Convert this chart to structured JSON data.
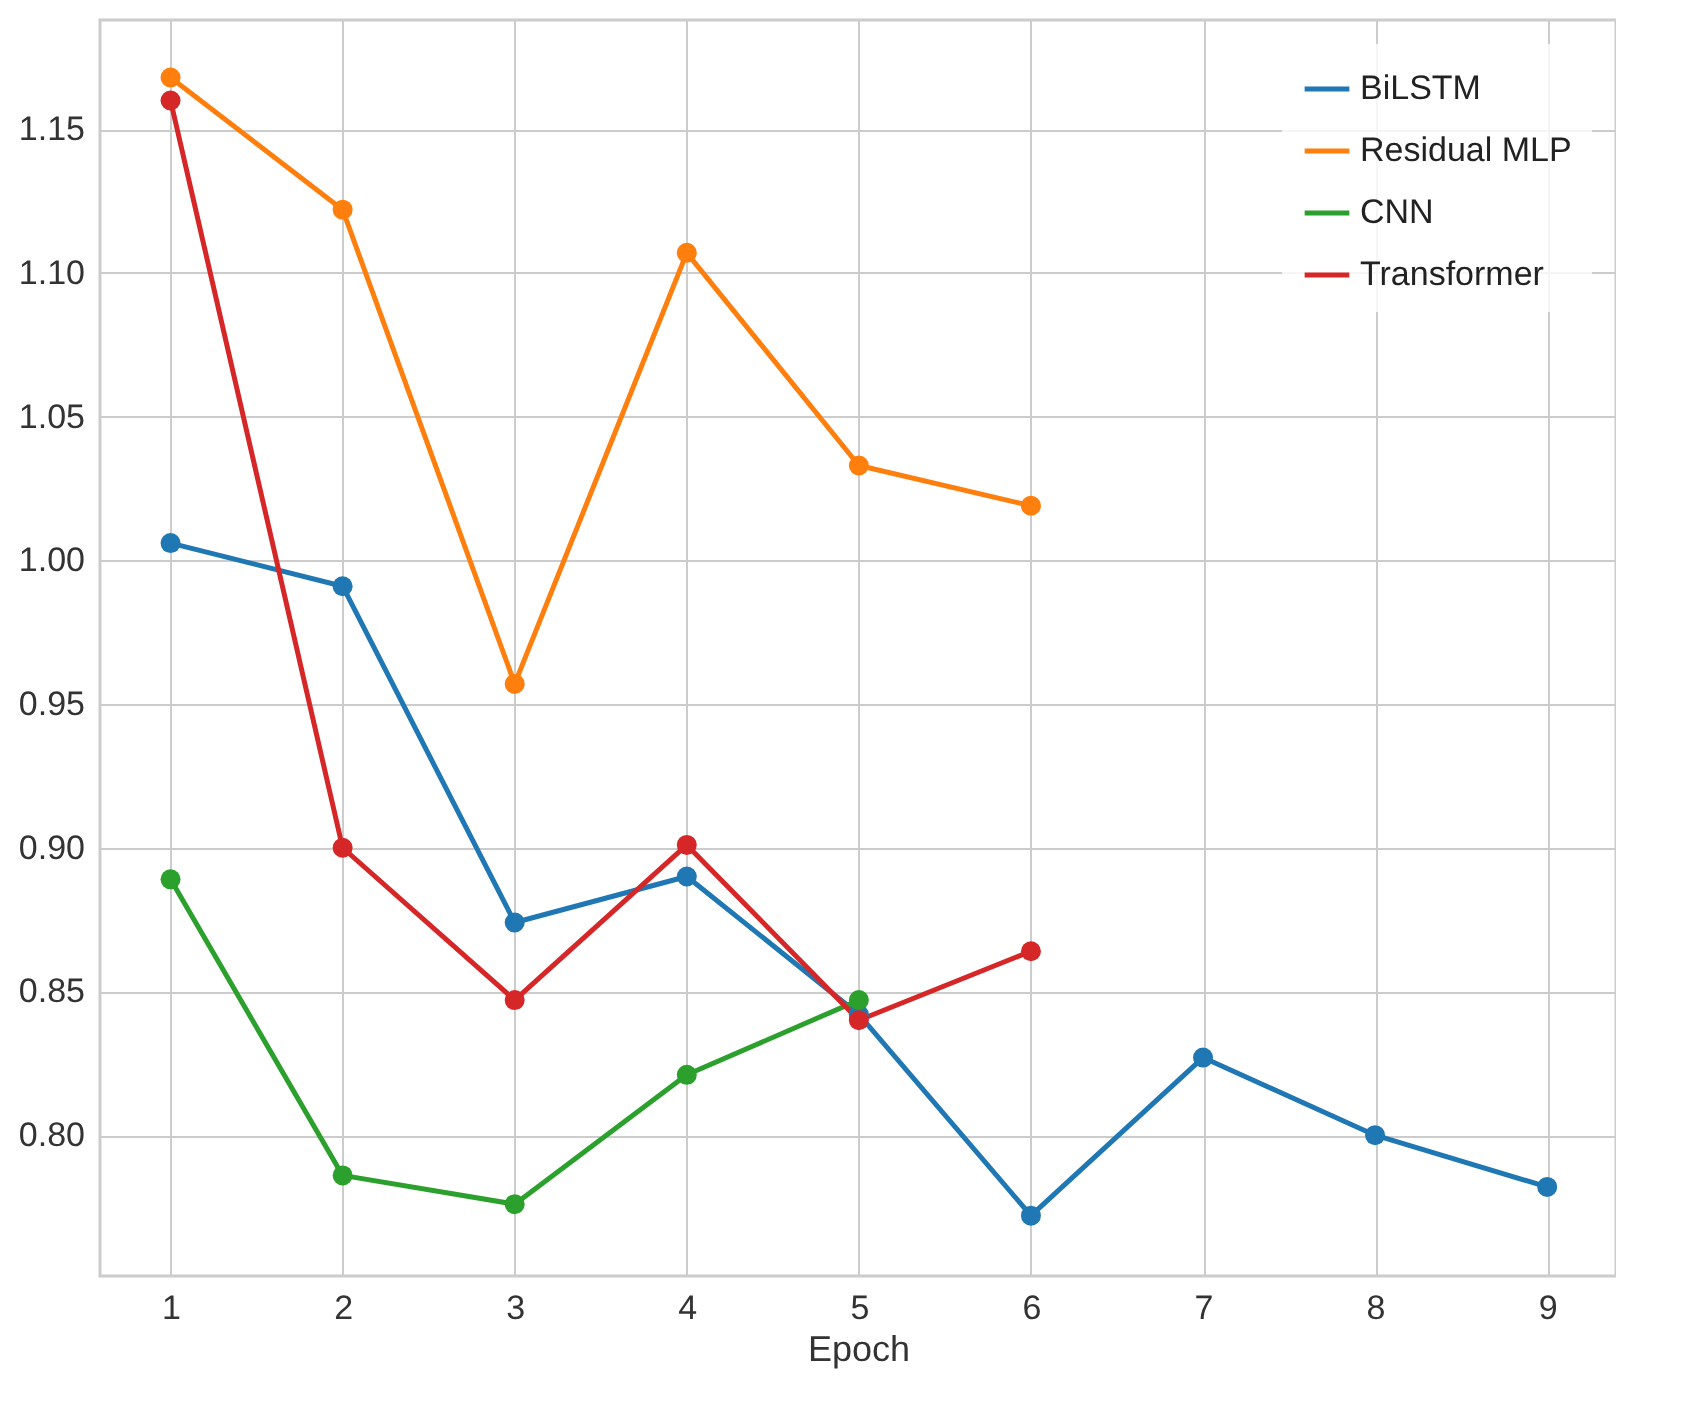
{
  "chart_data": {
    "type": "line",
    "xlabel": "Epoch",
    "x": [
      1,
      2,
      3,
      4,
      5,
      6,
      7,
      8,
      9
    ],
    "series": [
      {
        "name": "BiLSTM",
        "color": "#1f77b4",
        "values": [
          1.006,
          0.991,
          0.874,
          0.89,
          0.842,
          0.772,
          0.827,
          0.8,
          0.782
        ]
      },
      {
        "name": "Residual MLP",
        "color": "#ff7f0e",
        "values": [
          1.168,
          1.122,
          0.957,
          1.107,
          1.033,
          1.019,
          null,
          null,
          null
        ]
      },
      {
        "name": "CNN",
        "color": "#2ca02c",
        "values": [
          0.889,
          0.786,
          0.776,
          0.821,
          0.847,
          null,
          null,
          null,
          null
        ]
      },
      {
        "name": "Transformer",
        "color": "#d62728",
        "values": [
          1.16,
          0.9,
          0.847,
          0.901,
          0.84,
          0.864,
          null,
          null,
          null
        ]
      }
    ],
    "xlim": [
      0.59,
      9.4
    ],
    "ylim": [
      0.751,
      1.188
    ],
    "xticks": [
      1,
      2,
      3,
      4,
      5,
      6,
      7,
      8,
      9
    ],
    "yticks": [
      {
        "value": 0.8,
        "label": "0.80"
      },
      0.85,
      {
        "value": 0.9,
        "label": "0.90"
      },
      0.95,
      {
        "value": 1,
        "label": "1.00"
      },
      1.05,
      {
        "value": 1.1,
        "label": "1.10"
      },
      1.15
    ],
    "grid": true,
    "legend": "top right",
    "marker": "circle",
    "line_style": "solid"
  }
}
